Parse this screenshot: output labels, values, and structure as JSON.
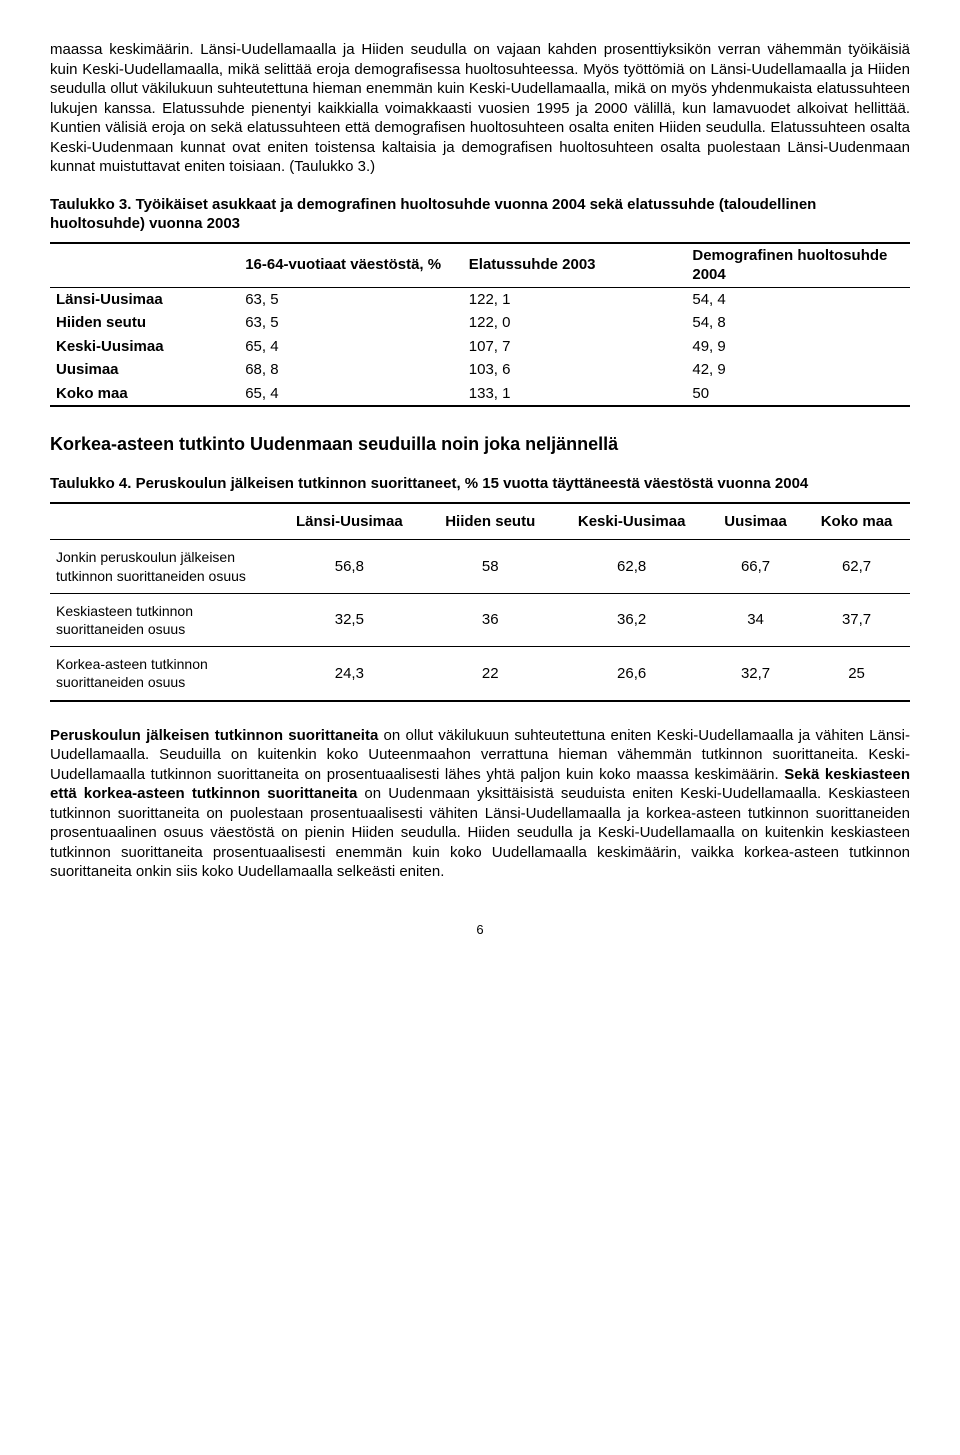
{
  "para1_a": "maassa keskimäärin. Länsi-Uudellamaalla ja Hiiden seudulla on vajaan kahden prosenttiyksikön verran vähemmän työikäisiä kuin Keski-Uudellamaalla, mikä selittää eroja demografisessa huoltosuhteessa. Myös työttömiä on Länsi-Uudellamaalla ja Hiiden seudulla ollut väkilukuun suhteutettuna hieman enemmän kuin Keski-Uudellamaalla, mikä on myös yhdenmukaista elatussuhteen lukujen kanssa. Elatussuhde pienentyi kaikkialla voimakkaasti vuosien 1995 ja 2000 välillä, kun lamavuodet alkoivat hellittää. Kuntien välisiä eroja on sekä elatussuhteen että demografisen huoltosuhteen osalta eniten Hiiden seudulla. Elatussuhteen osalta Keski-Uudenmaan kunnat ovat eniten toistensa kaltaisia ja demografisen huoltosuhteen osalta puolestaan Länsi-Uudenmaan kunnat muistuttavat eniten toisiaan. (Taulukko 3.)",
  "table3": {
    "title": "Taulukko 3. Työikäiset asukkaat ja demografinen huoltosuhde vuonna 2004 sekä elatussuhde (taloudellinen huoltosuhde) vuonna 2003",
    "headers": [
      "",
      "16-64-vuotiaat väestöstä, %",
      "Elatussuhde 2003",
      "Demografinen huoltosuhde 2004"
    ],
    "rows": [
      [
        "Länsi-Uusimaa",
        "63, 5",
        "122, 1",
        "54, 4"
      ],
      [
        "Hiiden seutu",
        "63, 5",
        "122, 0",
        "54, 8"
      ],
      [
        "Keski-Uusimaa",
        "65, 4",
        "107, 7",
        "49, 9"
      ],
      [
        "Uusimaa",
        "68, 8",
        "103, 6",
        "42, 9"
      ],
      [
        "Koko maa",
        "65, 4",
        "133, 1",
        "50"
      ]
    ]
  },
  "section_heading": "Korkea-asteen tutkinto Uudenmaan seuduilla noin joka neljännellä",
  "table4": {
    "title": "Taulukko 4. Peruskoulun jälkeisen tutkinnon suorittaneet, % 15 vuotta täyttäneestä väestöstä vuonna 2004",
    "headers": [
      "",
      "Länsi-Uusimaa",
      "Hiiden seutu",
      "Keski-Uusimaa",
      "Uusimaa",
      "Koko maa"
    ],
    "rows": [
      [
        "Jonkin peruskoulun jälkeisen tutkinnon suorittaneiden osuus",
        "56,8",
        "58",
        "62,8",
        "66,7",
        "62,7"
      ],
      [
        "Keskiasteen tutkinnon suorittaneiden osuus",
        "32,5",
        "36",
        "36,2",
        "34",
        "37,7"
      ],
      [
        "Korkea-asteen tutkinnon suorittaneiden osuus",
        "24,3",
        "22",
        "26,6",
        "32,7",
        "25"
      ]
    ]
  },
  "para2_lead": "Peruskoulun jälkeisen tutkinnon suorittaneita",
  "para2_mid1": " on ollut väkilukuun suhteutettuna eniten Keski-Uudellamaalla ja vähiten Länsi-Uudellamaalla. Seuduilla on kuitenkin koko Uuteenmaahon verrattuna hieman vähemmän tutkinnon suorittaneita. Keski-Uudellamaalla tutkinnon suorittaneita on prosentuaalisesti lähes yhtä paljon kuin koko maassa keskimäärin. ",
  "para2_bold2": "Sekä keskiasteen että korkea-asteen tutkinnon suorittaneita",
  "para2_tail": " on Uudenmaan yksittäisistä seuduista eniten Keski-Uudellamaalla. Keskiasteen tutkinnon suorittaneita on puolestaan prosentuaalisesti vähiten Länsi-Uudellamaalla ja korkea-asteen tutkinnon suorittaneiden prosentuaalinen osuus väestöstä on pienin Hiiden seudulla. Hiiden seudulla ja Keski-Uudellamaalla on kuitenkin keskiasteen tutkinnon suorittaneita prosentuaalisesti enemmän kuin koko Uudellamaalla keskimäärin, vaikka korkea-asteen tutkinnon suorittaneita onkin siis koko Uudellamaalla selkeästi eniten.",
  "page_number": "6"
}
